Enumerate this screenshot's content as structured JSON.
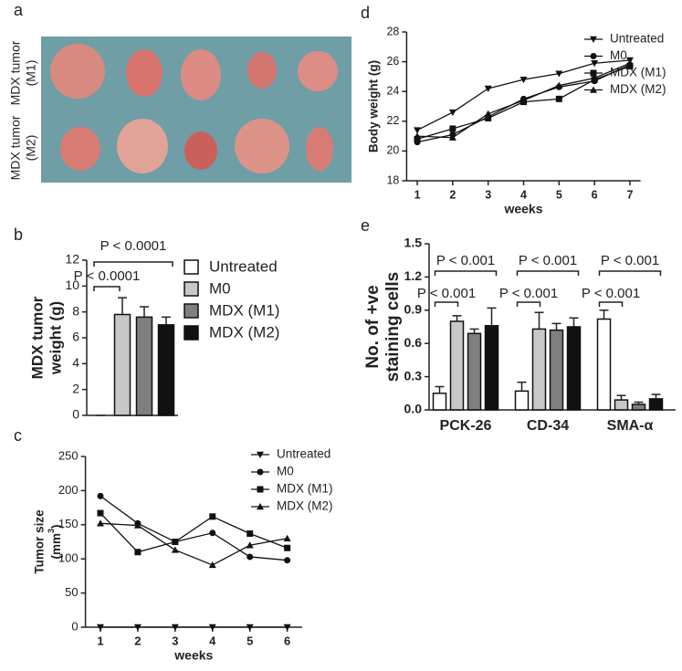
{
  "photo": {
    "panel": "a",
    "rows": [
      [
        "MDX tumor",
        "(M1)"
      ],
      [
        "MDX tumor",
        "(M2)"
      ]
    ]
  },
  "chart_data": [
    {
      "panel": "b",
      "type": "bar",
      "categories": [
        "Untreated",
        "M0",
        "MDX (M1)",
        "MDX (M2)"
      ],
      "values": [
        0,
        7.8,
        7.6,
        7.0
      ],
      "errors": [
        0,
        1.3,
        0.8,
        0.6
      ],
      "colors": [
        "#ffffff",
        "#c8c8c8",
        "#7f7f7f",
        "#111111"
      ],
      "ylabel": [
        "MDX tumor",
        "weight (g)"
      ],
      "ylim": [
        0,
        12
      ],
      "yticks": [
        0,
        2,
        4,
        6,
        8,
        10,
        12
      ],
      "annotations": [
        "P < 0.0001",
        "P < 0.0001"
      ]
    },
    {
      "panel": "c",
      "type": "line",
      "x": [
        1,
        2,
        3,
        4,
        5,
        6
      ],
      "xlim": [
        0.6,
        6.4
      ],
      "xlabel": "weeks",
      "ylabel": [
        "Tumor size",
        "(mm",
        "3",
        ")"
      ],
      "ylim": [
        0,
        250
      ],
      "yticks": [
        0,
        50,
        100,
        150,
        200,
        250
      ],
      "series": [
        {
          "name": "Untreated",
          "marker": "v",
          "color": "#111",
          "values": [
            0,
            0,
            0,
            0,
            0,
            0
          ]
        },
        {
          "name": "M0",
          "marker": "o",
          "color": "#111",
          "values": [
            192,
            152,
            125,
            138,
            103,
            98
          ]
        },
        {
          "name": "MDX (M1)",
          "marker": "s",
          "color": "#111",
          "values": [
            167,
            110,
            125,
            162,
            137,
            116
          ]
        },
        {
          "name": "MDX (M2)",
          "marker": "^",
          "color": "#111",
          "values": [
            152,
            149,
            113,
            91,
            120,
            130
          ]
        }
      ]
    },
    {
      "panel": "d",
      "type": "line",
      "x": [
        1,
        2,
        3,
        4,
        5,
        6,
        7
      ],
      "xlim": [
        0.7,
        7.3
      ],
      "xlabel": "weeks",
      "ylabel": [
        "Body weight (g)"
      ],
      "ylim": [
        18,
        28
      ],
      "yticks": [
        18,
        20,
        22,
        24,
        26,
        28
      ],
      "series": [
        {
          "name": "Untreated",
          "marker": "v",
          "color": "#111",
          "values": [
            21.4,
            22.6,
            24.2,
            24.8,
            25.2,
            25.9,
            26.1
          ]
        },
        {
          "name": "M0",
          "marker": "o",
          "color": "#111",
          "values": [
            20.6,
            21.1,
            22.3,
            23.5,
            24.3,
            24.7,
            25.8
          ]
        },
        {
          "name": "MDX (M1)",
          "marker": "s",
          "color": "#111",
          "values": [
            20.8,
            21.5,
            22.2,
            23.3,
            23.5,
            24.8,
            25.7
          ]
        },
        {
          "name": "MDX (M2)",
          "marker": "^",
          "color": "#111",
          "values": [
            21.0,
            20.9,
            22.5,
            23.4,
            24.4,
            24.9,
            25.9
          ]
        }
      ]
    },
    {
      "panel": "e",
      "type": "grouped_bar",
      "categories": [
        "PCK-26",
        "CD-34",
        "SMA-α"
      ],
      "ylabel": [
        "No. of +ve",
        "staining cells"
      ],
      "ylim": [
        0,
        1.5
      ],
      "yticks": [
        {
          "value": 0,
          "label": "0.0"
        },
        0.3,
        0.6,
        0.9,
        1.2,
        {
          "value": 1.5,
          "label": "1.5"
        }
      ],
      "series": [
        {
          "color": "#ffffff",
          "values": [
            0.15,
            0.17,
            0.82
          ],
          "errors": [
            0.06,
            0.08,
            0.08
          ]
        },
        {
          "color": "#c8c8c8",
          "values": [
            0.8,
            0.73,
            0.09
          ],
          "errors": [
            0.05,
            0.15,
            0.04
          ]
        },
        {
          "color": "#7f7f7f",
          "values": [
            0.69,
            0.72,
            0.05
          ],
          "errors": [
            0.04,
            0.06,
            0.02
          ]
        },
        {
          "color": "#111111",
          "values": [
            0.76,
            0.75,
            0.1
          ],
          "errors": [
            0.16,
            0.08,
            0.04
          ]
        }
      ],
      "annotations": [
        "P < 0.001",
        "P < 0.001",
        "P < 0.001",
        "P < 0.001",
        "P < 0.001",
        "P < 0.001"
      ]
    }
  ]
}
